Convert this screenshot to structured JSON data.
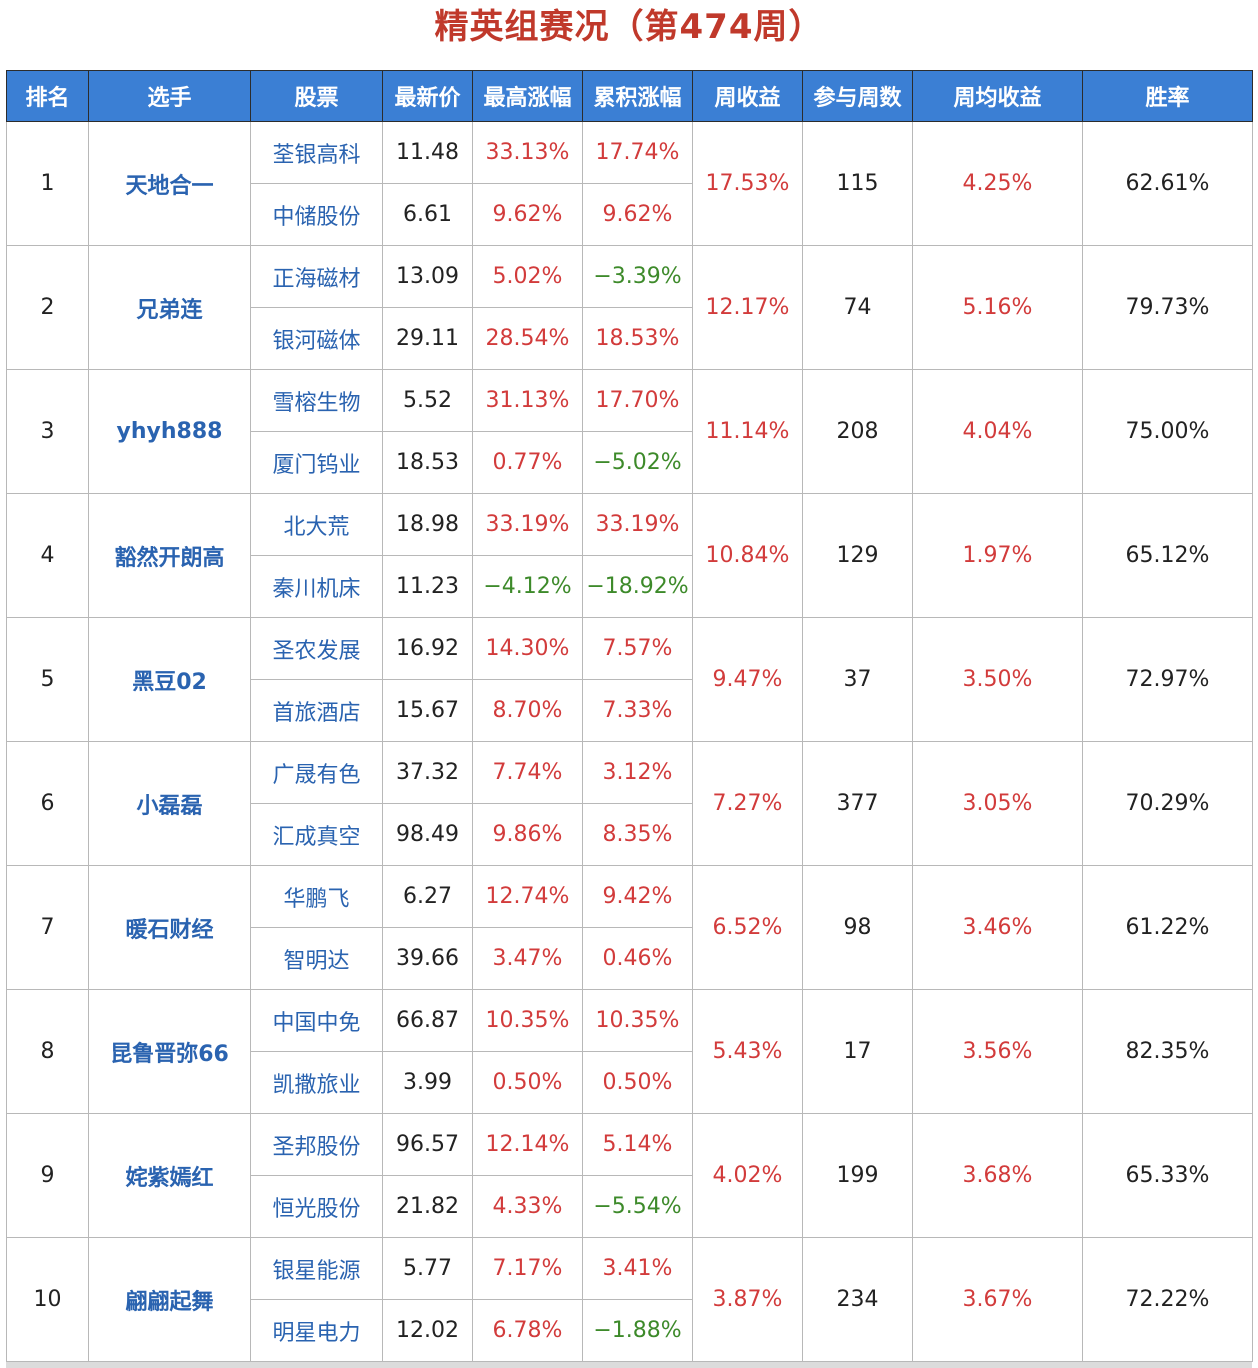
{
  "page_title": "精英组赛况（第474周）",
  "headers": [
    "排名",
    "选手",
    "股票",
    "最新价",
    "最高涨幅",
    "累积涨幅",
    "周收益",
    "参与周数",
    "周均收益",
    "胜率"
  ],
  "colors": {
    "header_bg": "#3b7fd4",
    "title": "#c0392b",
    "positive": "#d23b3b",
    "negative": "#3d8a2a",
    "name": "#2a63b0"
  },
  "rows": [
    {
      "rank": "1",
      "player": "天地合一",
      "weekly_return": "17.53%",
      "weeks": "115",
      "avg_return": "4.25%",
      "win_rate": "62.61%",
      "stocks": [
        {
          "name": "荃银高科",
          "price": "11.48",
          "max_gain": "33.13%",
          "cum_gain": "17.74%"
        },
        {
          "name": "中储股份",
          "price": "6.61",
          "max_gain": "9.62%",
          "cum_gain": "9.62%"
        }
      ]
    },
    {
      "rank": "2",
      "player": "兄弟连",
      "weekly_return": "12.17%",
      "weeks": "74",
      "avg_return": "5.16%",
      "win_rate": "79.73%",
      "stocks": [
        {
          "name": "正海磁材",
          "price": "13.09",
          "max_gain": "5.02%",
          "cum_gain": "−3.39%"
        },
        {
          "name": "银河磁体",
          "price": "29.11",
          "max_gain": "28.54%",
          "cum_gain": "18.53%"
        }
      ]
    },
    {
      "rank": "3",
      "player": "yhyh888",
      "weekly_return": "11.14%",
      "weeks": "208",
      "avg_return": "4.04%",
      "win_rate": "75.00%",
      "stocks": [
        {
          "name": "雪榕生物",
          "price": "5.52",
          "max_gain": "31.13%",
          "cum_gain": "17.70%"
        },
        {
          "name": "厦门钨业",
          "price": "18.53",
          "max_gain": "0.77%",
          "cum_gain": "−5.02%"
        }
      ]
    },
    {
      "rank": "4",
      "player": "豁然开朗高",
      "weekly_return": "10.84%",
      "weeks": "129",
      "avg_return": "1.97%",
      "win_rate": "65.12%",
      "stocks": [
        {
          "name": "北大荒",
          "price": "18.98",
          "max_gain": "33.19%",
          "cum_gain": "33.19%"
        },
        {
          "name": "秦川机床",
          "price": "11.23",
          "max_gain": "−4.12%",
          "cum_gain": "−18.92%"
        }
      ]
    },
    {
      "rank": "5",
      "player": "黑豆02",
      "weekly_return": "9.47%",
      "weeks": "37",
      "avg_return": "3.50%",
      "win_rate": "72.97%",
      "stocks": [
        {
          "name": "圣农发展",
          "price": "16.92",
          "max_gain": "14.30%",
          "cum_gain": "7.57%"
        },
        {
          "name": "首旅酒店",
          "price": "15.67",
          "max_gain": "8.70%",
          "cum_gain": "7.33%"
        }
      ]
    },
    {
      "rank": "6",
      "player": "小磊磊",
      "weekly_return": "7.27%",
      "weeks": "377",
      "avg_return": "3.05%",
      "win_rate": "70.29%",
      "stocks": [
        {
          "name": "广晟有色",
          "price": "37.32",
          "max_gain": "7.74%",
          "cum_gain": "3.12%"
        },
        {
          "name": "汇成真空",
          "price": "98.49",
          "max_gain": "9.86%",
          "cum_gain": "8.35%"
        }
      ]
    },
    {
      "rank": "7",
      "player": "暖石财经",
      "weekly_return": "6.52%",
      "weeks": "98",
      "avg_return": "3.46%",
      "win_rate": "61.22%",
      "stocks": [
        {
          "name": "华鹏飞",
          "price": "6.27",
          "max_gain": "12.74%",
          "cum_gain": "9.42%"
        },
        {
          "name": "智明达",
          "price": "39.66",
          "max_gain": "3.47%",
          "cum_gain": "0.46%"
        }
      ]
    },
    {
      "rank": "8",
      "player": "昆鲁晋弥66",
      "weekly_return": "5.43%",
      "weeks": "17",
      "avg_return": "3.56%",
      "win_rate": "82.35%",
      "stocks": [
        {
          "name": "中国中免",
          "price": "66.87",
          "max_gain": "10.35%",
          "cum_gain": "10.35%"
        },
        {
          "name": "凯撒旅业",
          "price": "3.99",
          "max_gain": "0.50%",
          "cum_gain": "0.50%"
        }
      ]
    },
    {
      "rank": "9",
      "player": "姹紫嫣红",
      "weekly_return": "4.02%",
      "weeks": "199",
      "avg_return": "3.68%",
      "win_rate": "65.33%",
      "stocks": [
        {
          "name": "圣邦股份",
          "price": "96.57",
          "max_gain": "12.14%",
          "cum_gain": "5.14%"
        },
        {
          "name": "恒光股份",
          "price": "21.82",
          "max_gain": "4.33%",
          "cum_gain": "−5.54%"
        }
      ]
    },
    {
      "rank": "10",
      "player": "翩翩起舞",
      "weekly_return": "3.87%",
      "weeks": "234",
      "avg_return": "3.67%",
      "win_rate": "72.22%",
      "stocks": [
        {
          "name": "银星能源",
          "price": "5.77",
          "max_gain": "7.17%",
          "cum_gain": "3.41%"
        },
        {
          "name": "明星电力",
          "price": "12.02",
          "max_gain": "6.78%",
          "cum_gain": "−1.88%"
        }
      ]
    }
  ]
}
